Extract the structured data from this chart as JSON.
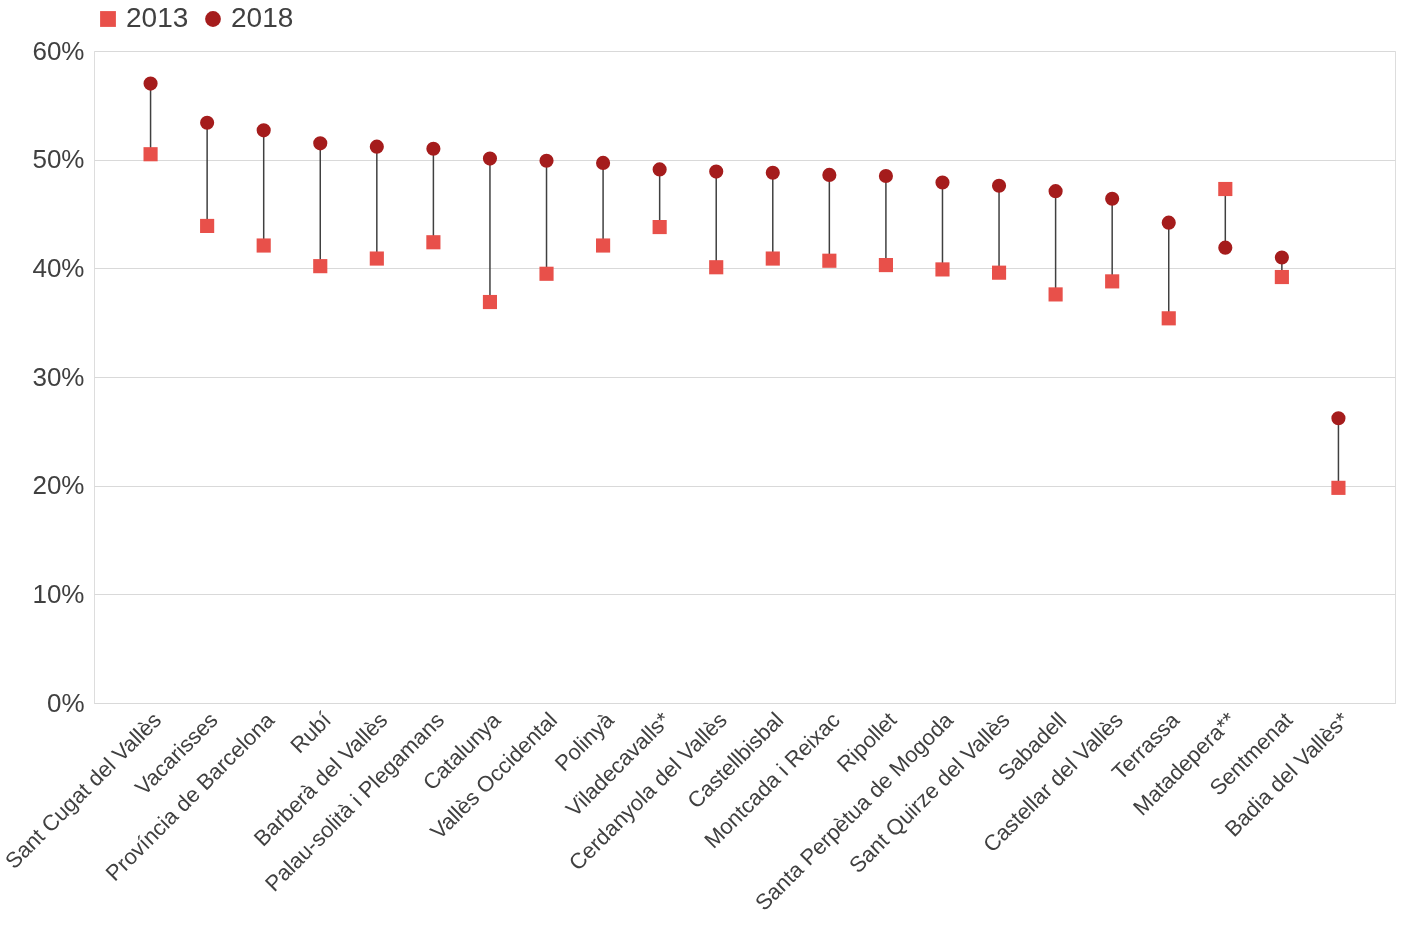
{
  "chart_data": {
    "type": "scatter",
    "categories": [
      "Sant Cugat del Vallès",
      "Vacarisses",
      "Província de Barcelona",
      "Rubí",
      "Barberà del Vallès",
      "Palau-solità i Plegamans",
      "Catalunya",
      "Vallès Occidental",
      "Polinyà",
      "Viladecavalls*",
      "Cerdanyola del Vallès",
      "Castellbisbal",
      "Montcada i Reixac",
      "Ripollet",
      "Santa Perpètua de Mogoda",
      "Sant Quirze del Vallès",
      "Sabadell",
      "Castellar del Vallès",
      "Terrassa",
      "Matadepera**",
      "Sentmenat",
      "Badia del Vallès*"
    ],
    "series": [
      {
        "name": "2013",
        "color": "#e8504a",
        "marker": "square",
        "values": [
          50.5,
          43.9,
          42.1,
          40.2,
          40.9,
          42.4,
          36.9,
          39.5,
          42.1,
          43.8,
          40.1,
          40.9,
          40.7,
          40.3,
          39.9,
          39.6,
          37.6,
          38.8,
          35.4,
          47.3,
          39.2,
          19.8
        ]
      },
      {
        "name": "2018",
        "color": "#a51c1c",
        "marker": "circle",
        "values": [
          57.0,
          53.4,
          52.7,
          51.5,
          51.2,
          51.0,
          50.1,
          49.9,
          49.7,
          49.1,
          48.9,
          48.8,
          48.6,
          48.5,
          47.9,
          47.6,
          47.1,
          46.4,
          44.2,
          41.9,
          41.0,
          26.2
        ]
      }
    ],
    "ylim": [
      0,
      60
    ],
    "yticks": [
      {
        "value": 0,
        "label": "0%"
      },
      {
        "value": 10,
        "label": "10%"
      },
      {
        "value": 20,
        "label": "20%"
      },
      {
        "value": 30,
        "label": "30%"
      },
      {
        "value": 40,
        "label": "40%"
      },
      {
        "value": 50,
        "label": "50%"
      },
      {
        "value": 60,
        "label": "60%"
      }
    ],
    "grid": "y",
    "legend": "top"
  }
}
